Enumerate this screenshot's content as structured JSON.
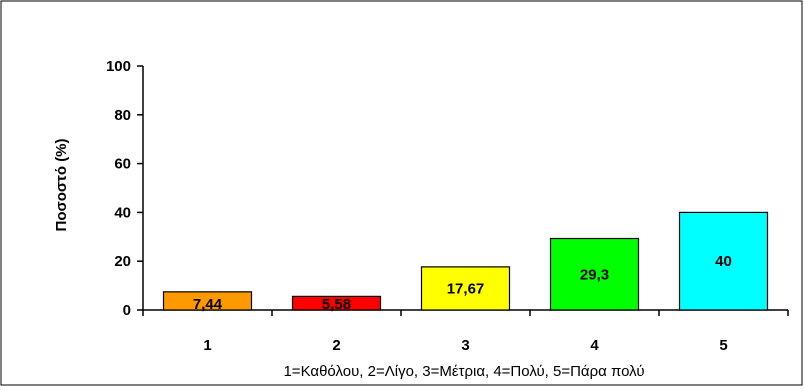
{
  "chart_data": {
    "type": "bar",
    "categories": [
      "1",
      "2",
      "3",
      "4",
      "5"
    ],
    "values": [
      7.44,
      5.58,
      17.67,
      29.3,
      40
    ],
    "data_labels": [
      "7,44",
      "5,58",
      "17,67",
      "29,3",
      "40"
    ],
    "colors": [
      "#FF9900",
      "#FF0000",
      "#FFFF00",
      "#00FF00",
      "#00FFFF"
    ],
    "title": "",
    "xlabel": "1=Καθόλου, 2=Λίγο, 3=Μέτρια, 4=Πολύ, 5=Πάρα πολύ",
    "ylabel": "Ποσοστό (%)",
    "ylim": [
      0,
      100
    ],
    "yticks": [
      0,
      20,
      40,
      60,
      80,
      100
    ],
    "grid": false,
    "legend": "none"
  }
}
